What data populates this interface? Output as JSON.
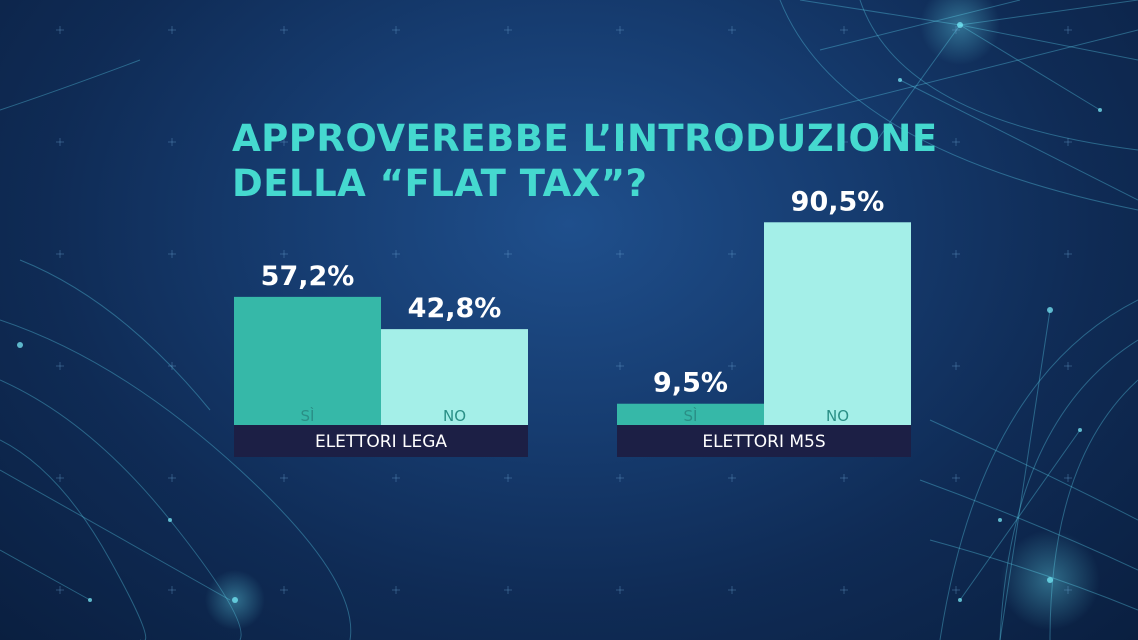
{
  "title_lines": [
    "APPROVEREBBE L’INTRODUZIONE",
    "DELLA “FLAT TAX”?"
  ],
  "colors": {
    "si": "#36b8a8",
    "no": "#a4efe8",
    "group_bar": "#1c1f45",
    "title": "#45d9cf"
  },
  "chart_data": [
    {
      "type": "bar",
      "group": "ELETTORI LEGA",
      "categories": [
        "SÌ",
        "NO"
      ],
      "values": [
        57.2,
        42.8
      ],
      "value_labels": [
        "57,2%",
        "42,8%"
      ],
      "ylim": [
        0,
        100
      ]
    },
    {
      "type": "bar",
      "group": "ELETTORI M5S",
      "categories": [
        "SÌ",
        "NO"
      ],
      "values": [
        9.5,
        90.5
      ],
      "value_labels": [
        "9,5%",
        "90,5%"
      ],
      "ylim": [
        0,
        100
      ]
    }
  ]
}
